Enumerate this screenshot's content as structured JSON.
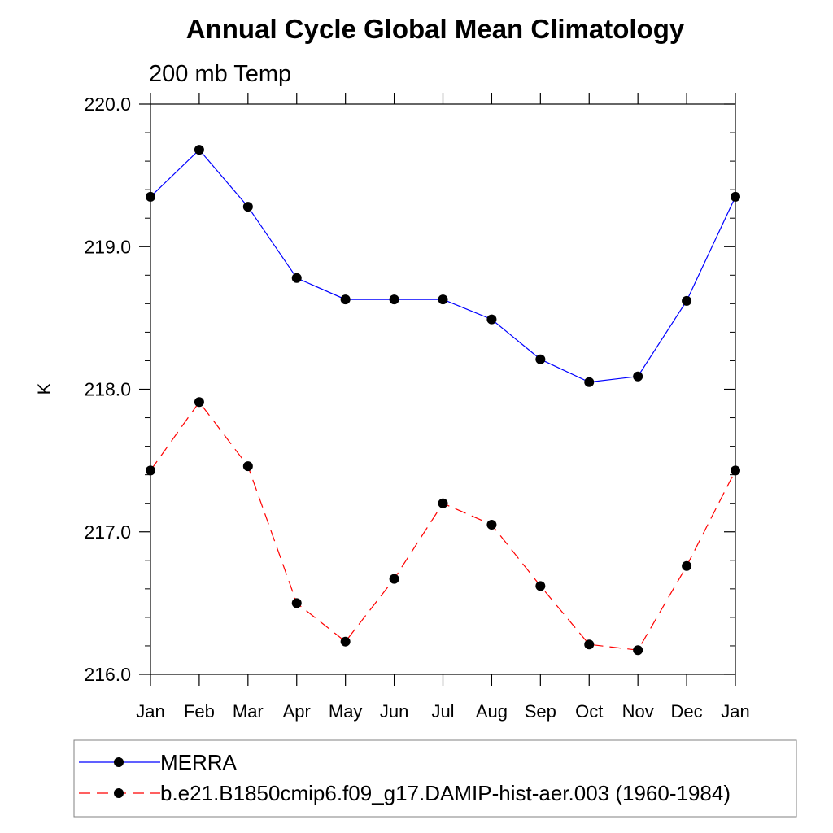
{
  "chart_data": {
    "type": "line",
    "title": "Annual Cycle Global Mean Climatology",
    "subtitle": "200 mb Temp",
    "ylabel": "K",
    "xlabel": "",
    "categories": [
      "Jan",
      "Feb",
      "Mar",
      "Apr",
      "May",
      "Jun",
      "Jul",
      "Aug",
      "Sep",
      "Oct",
      "Nov",
      "Dec",
      "Jan"
    ],
    "ylim": [
      216.0,
      220.0
    ],
    "yticks": [
      216.0,
      217.0,
      218.0,
      219.0,
      220.0
    ],
    "ytick_labels": [
      "216.0",
      "217.0",
      "218.0",
      "219.0",
      "220.0"
    ],
    "yminor_step": 0.2,
    "grid": false,
    "legend_position": "bottom",
    "series": [
      {
        "name": "MERRA",
        "color": "#0000ff",
        "dash": "solid",
        "marker": "filled-circle",
        "values": [
          219.35,
          219.68,
          219.28,
          218.78,
          218.63,
          218.63,
          218.63,
          218.49,
          218.21,
          218.05,
          218.09,
          218.62,
          219.35
        ]
      },
      {
        "name": "b.e21.B1850cmip6.f09_g17.DAMIP-hist-aer.003 (1960-1984)",
        "color": "#ff0000",
        "dash": "dashed",
        "marker": "filled-circle",
        "values": [
          217.43,
          217.91,
          217.46,
          216.5,
          216.23,
          216.67,
          217.2,
          217.05,
          216.62,
          216.21,
          216.17,
          216.76,
          217.43
        ]
      }
    ]
  }
}
